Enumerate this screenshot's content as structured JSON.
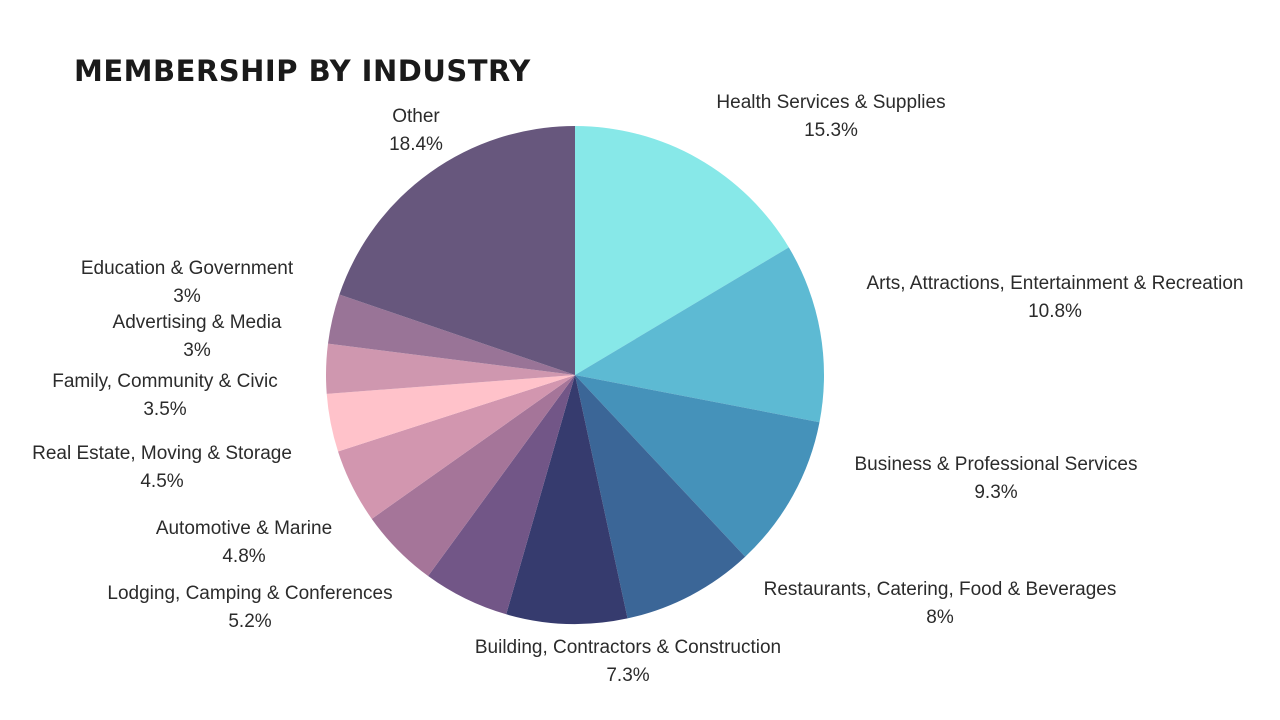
{
  "chart_data": {
    "type": "pie",
    "title": "MEMBERSHIP BY INDUSTRY",
    "slices": [
      {
        "label": "Health Services & Supplies",
        "value": 15.3,
        "display": "15.3%",
        "color": "#87E8E8"
      },
      {
        "label": "Arts, Attractions, Entertainment & Recreation",
        "value": 10.8,
        "display": "10.8%",
        "color": "#5DBAD3"
      },
      {
        "label": "Business & Professional Services",
        "value": 9.3,
        "display": "9.3%",
        "color": "#4592BA"
      },
      {
        "label": "Restaurants, Catering, Food & Beverages",
        "value": 8,
        "display": "8%",
        "color": "#3B6697"
      },
      {
        "label": "Building, Contractors & Construction",
        "value": 7.3,
        "display": "7.3%",
        "color": "#363B6E"
      },
      {
        "label": "Lodging, Camping & Conferences",
        "value": 5.2,
        "display": "5.2%",
        "color": "#725687"
      },
      {
        "label": "Automotive & Marine",
        "value": 4.8,
        "display": "4.8%",
        "color": "#A57599"
      },
      {
        "label": "Real Estate, Moving & Storage",
        "value": 4.5,
        "display": "4.5%",
        "color": "#D296AF"
      },
      {
        "label": "Family, Community & Civic",
        "value": 3.5,
        "display": "3.5%",
        "color": "#FFC2CA"
      },
      {
        "label": "Advertising & Media",
        "value": 3,
        "display": "3%",
        "color": "#CF97AF"
      },
      {
        "label": "Education & Government",
        "value": 3,
        "display": "3%",
        "color": "#997497"
      },
      {
        "label": "Other",
        "value": 18.4,
        "display": "18.4%",
        "color": "#67577D"
      }
    ],
    "legend": "none"
  }
}
